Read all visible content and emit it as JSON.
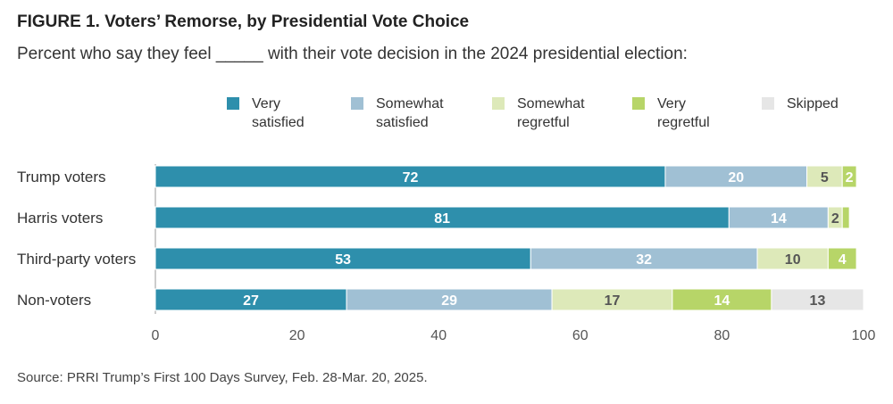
{
  "figure": {
    "title": "FIGURE 1.  Voters’ Remorse, by Presidential Vote Choice",
    "subtitle": "Percent who say they feel _____ with their vote decision in the 2024 presidential election:",
    "source": "Source: PRRI Trump’s First 100 Days Survey, Feb. 28-Mar. 20, 2025."
  },
  "legend": [
    {
      "label": "Very\nsatisfied",
      "color": "#2e8fac"
    },
    {
      "label": "Somewhat\nsatisfied",
      "color": "#a0c0d4"
    },
    {
      "label": "Somewhat\nregretful",
      "color": "#dde9b9"
    },
    {
      "label": "Very\nregretful",
      "color": "#b7d568"
    },
    {
      "label": "Skipped",
      "color": "#e6e6e6"
    }
  ],
  "chart_data": {
    "type": "bar",
    "orientation": "horizontal",
    "stacked": true,
    "categories": [
      "Trump voters",
      "Harris voters",
      "Third-party voters",
      "Non-voters"
    ],
    "series": [
      {
        "name": "Very satisfied",
        "values": [
          72,
          81,
          53,
          27
        ],
        "labels": [
          "72",
          "81",
          "53",
          "27"
        ],
        "color": "#2e8fac",
        "label_color": "#ffffff"
      },
      {
        "name": "Somewhat satisfied",
        "values": [
          20,
          14,
          32,
          29
        ],
        "labels": [
          "20",
          "14",
          "32",
          "29"
        ],
        "color": "#a0c0d4",
        "label_color": "#ffffff"
      },
      {
        "name": "Somewhat regretful",
        "values": [
          5,
          2,
          10,
          17
        ],
        "labels": [
          "5",
          "2",
          "10",
          "17"
        ],
        "color": "#dde9b9",
        "label_color": "#555555"
      },
      {
        "name": "Very regretful",
        "values": [
          2,
          1,
          4,
          14
        ],
        "labels": [
          "2",
          "",
          "4",
          "14"
        ],
        "color": "#b7d568",
        "label_color": "#ffffff"
      },
      {
        "name": "Skipped",
        "values": [
          0,
          0,
          0,
          13
        ],
        "labels": [
          "",
          "",
          "",
          "13"
        ],
        "color": "#e6e6e6",
        "label_color": "#555555"
      }
    ],
    "xlim": [
      0,
      100
    ],
    "xticks": [
      0,
      20,
      40,
      60,
      80,
      100
    ],
    "xlabel": "",
    "ylabel": "",
    "legend_position": "top",
    "grid": false
  }
}
